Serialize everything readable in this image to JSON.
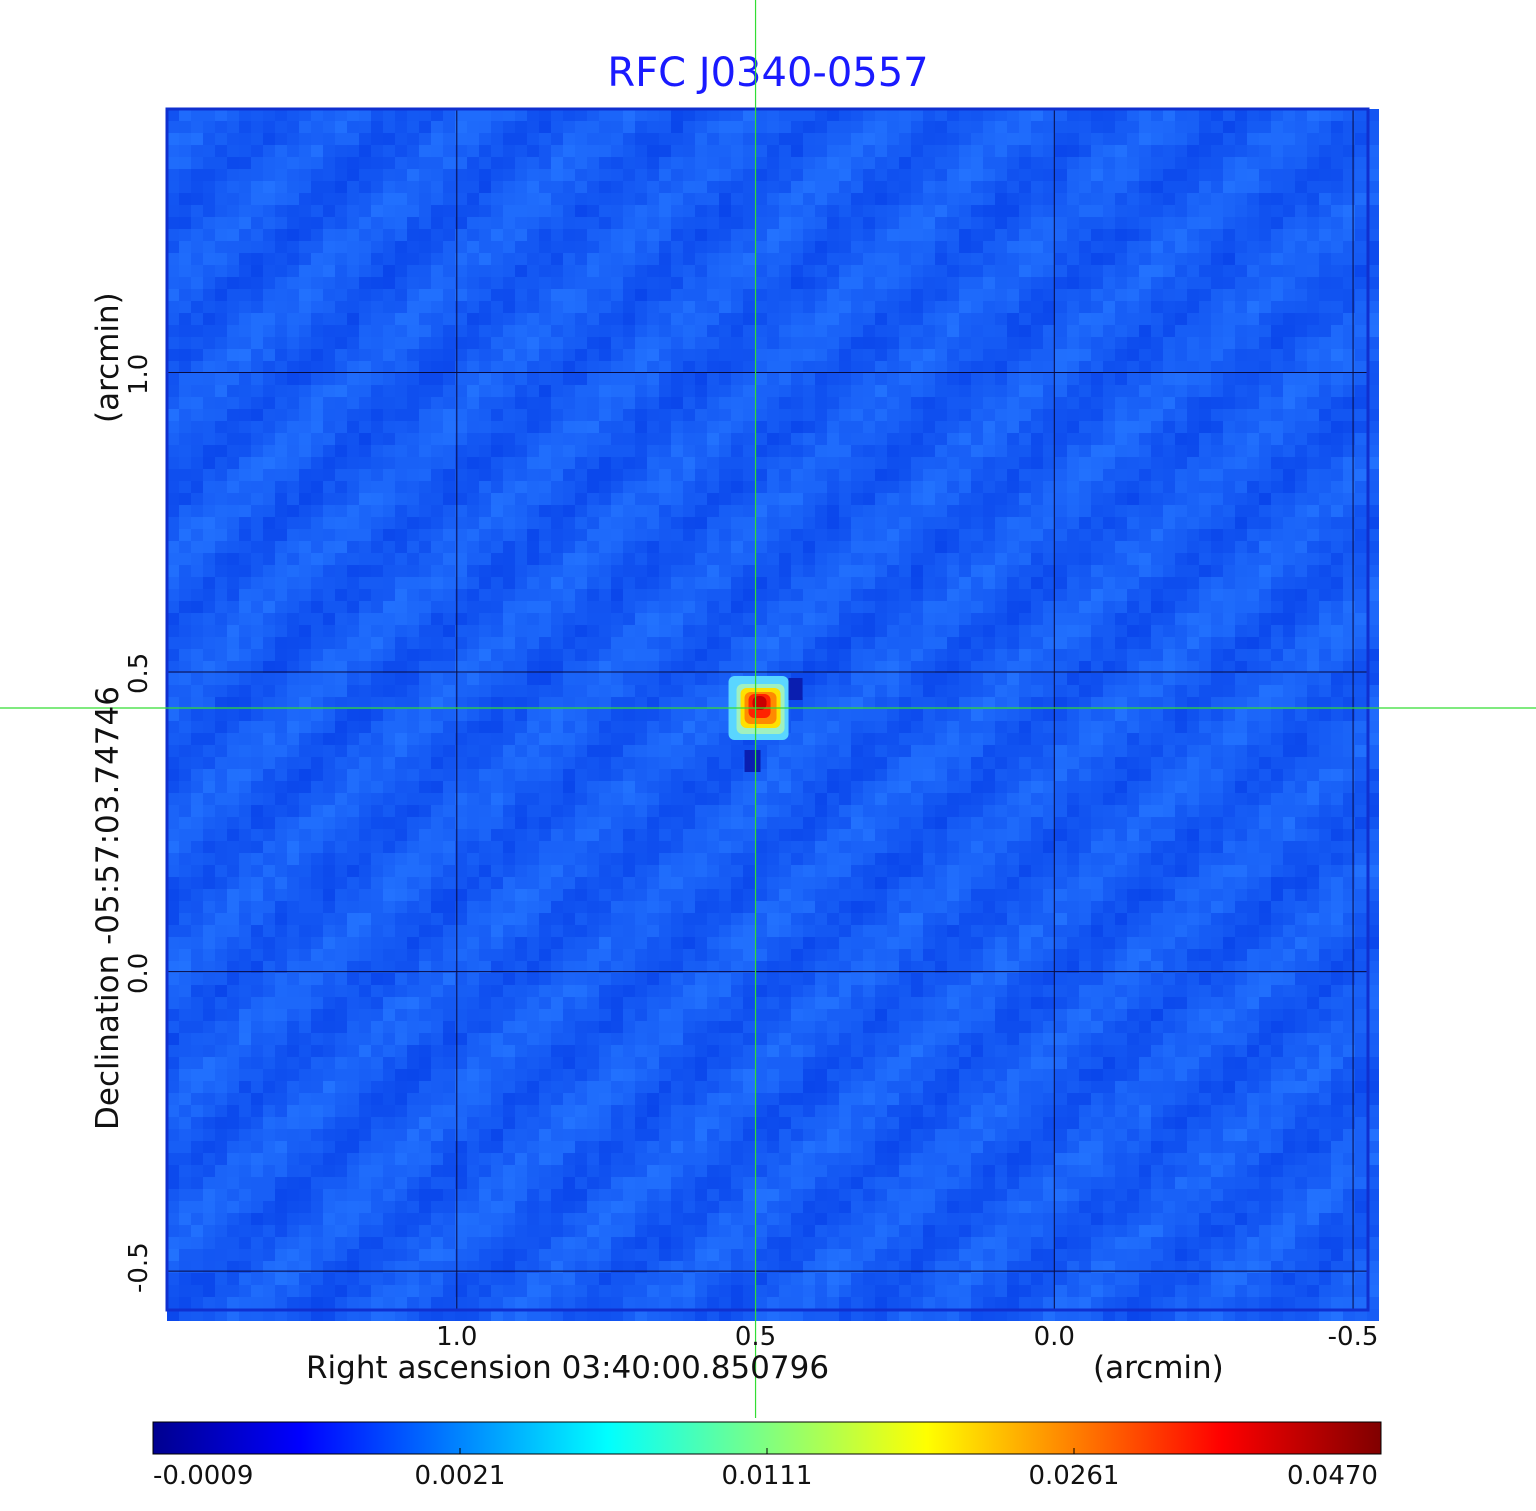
{
  "chart_data": {
    "type": "heatmap",
    "title": "RFC J0340-0557",
    "xlabel": "Right ascension  03:40:00.850796",
    "xunit": "(arcmin)",
    "ylabel": "Declination  -05:57:03.74746",
    "yunit": "(arcmin)",
    "x_ticks": [
      "1.0",
      "0.5",
      "0.0",
      "-0.5"
    ],
    "y_ticks": [
      "1.0",
      "0.5",
      "0.0",
      "-0.5"
    ],
    "xlim": [
      1.485,
      -0.525
    ],
    "ylim": [
      -0.565,
      1.44
    ],
    "grid": true,
    "crosshair": {
      "x": 0.5,
      "y": 0.44,
      "color": "#33dd33"
    },
    "peak": {
      "x": 0.495,
      "y": 0.44,
      "value": 0.047
    },
    "colorbar": {
      "colormap": "jet",
      "tick_labels": [
        "-0.0009",
        "0.0021",
        "0.0111",
        "0.0261",
        "0.0470"
      ]
    }
  }
}
